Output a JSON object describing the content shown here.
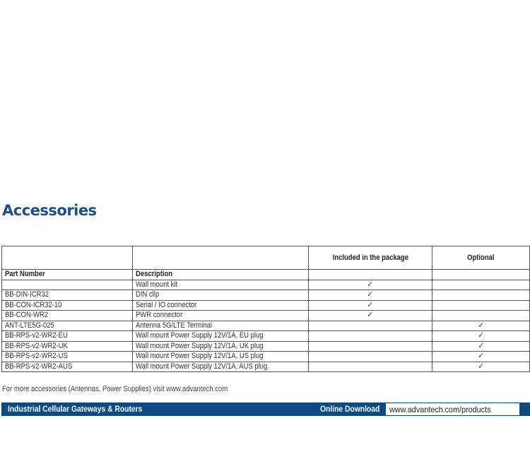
{
  "title": "Accessories",
  "table": {
    "group_headers": [
      "",
      "",
      "Included in the package",
      "Optional"
    ],
    "headers": [
      "Part Number",
      "Description",
      "",
      ""
    ],
    "rows": [
      {
        "part": "",
        "desc": "Wall mount kit",
        "included": "✓",
        "optional": ""
      },
      {
        "part": "BB-DIN-ICR32",
        "desc": "DIN clip",
        "included": "✓",
        "optional": ""
      },
      {
        "part": "BB-CON-ICR32-10",
        "desc": "Serial / IO connector",
        "included": "✓",
        "optional": ""
      },
      {
        "part": "BB-CON-WR2",
        "desc": "PWR connector",
        "included": "✓",
        "optional": ""
      },
      {
        "part": "ANT-LTE5G-025",
        "desc": "Antenna 5G/LTE Terminal",
        "included": "",
        "optional": "✓"
      },
      {
        "part": "BB-RPS-v2-WR2-EU",
        "desc": "Wall mount Power Supply 12V/1A, EU plug",
        "included": "",
        "optional": "✓"
      },
      {
        "part": "BB-RPS-v2-WR2-UK",
        "desc": "Wall mount Power Supply 12V/1A, UK plug",
        "included": "",
        "optional": "✓"
      },
      {
        "part": "BB-RPS-v2-WR2-US",
        "desc": "Wall mount Power Supply 12V/1A, US plug",
        "included": "",
        "optional": "✓"
      },
      {
        "part": "BB-RPS-v2-WR2-AUS",
        "desc": "Wall mount Power Supply 12V/1A, AUS plug",
        "included": "",
        "optional": "✓"
      }
    ]
  },
  "note": "For more accessories (Antennas, Power Supplies) visit www.advantech.com",
  "footer": {
    "left": "Industrial Cellular Gateways & Routers",
    "download_label": "Online Download",
    "url": "www.advantech.com/products"
  },
  "colors": {
    "brand_blue": "#0c4a84",
    "title_blue": "#1a4f8a"
  }
}
